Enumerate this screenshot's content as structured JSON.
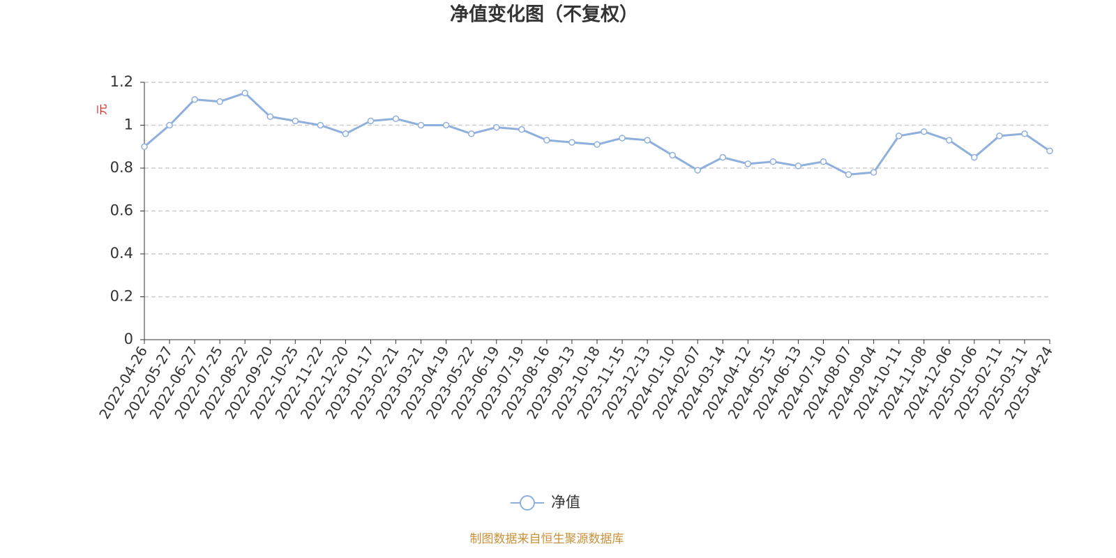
{
  "chart_data": {
    "type": "line",
    "title": "净值变化图（不复权）",
    "y_axis_label": "元",
    "source": "制图数据来自恒生聚源数据库",
    "categories": [
      "2022-04-26",
      "2022-05-27",
      "2022-06-27",
      "2022-07-25",
      "2022-08-22",
      "2022-09-20",
      "2022-10-25",
      "2022-11-22",
      "2022-12-20",
      "2023-01-17",
      "2023-02-21",
      "2023-03-21",
      "2023-04-19",
      "2023-05-22",
      "2023-06-19",
      "2023-07-19",
      "2023-08-16",
      "2023-09-13",
      "2023-10-18",
      "2023-11-15",
      "2023-12-13",
      "2024-01-10",
      "2024-02-07",
      "2024-03-14",
      "2024-04-12",
      "2024-05-15",
      "2024-06-13",
      "2024-07-10",
      "2024-08-07",
      "2024-09-04",
      "2024-10-11",
      "2024-11-08",
      "2024-12-06",
      "2025-01-06",
      "2025-02-11",
      "2025-03-11",
      "2025-04-24"
    ],
    "series": [
      {
        "name": "净值",
        "color": "#8fb0dc",
        "values": [
          0.9,
          1.0,
          1.12,
          1.11,
          1.15,
          1.04,
          1.02,
          1.0,
          0.96,
          1.02,
          1.03,
          1.0,
          1.0,
          0.96,
          0.99,
          0.98,
          0.93,
          0.92,
          0.91,
          0.94,
          0.93,
          0.86,
          0.79,
          0.85,
          0.82,
          0.83,
          0.81,
          0.83,
          0.77,
          0.78,
          0.95,
          0.97,
          0.93,
          0.85,
          0.95,
          0.96,
          0.88
        ]
      }
    ],
    "ylim": [
      0,
      1.2
    ],
    "yticks": [
      0,
      {
        "value": 0.2,
        "label": "0.2"
      },
      {
        "value": 0.4,
        "label": "0.4"
      },
      {
        "value": 0.6,
        "label": "0.6"
      },
      {
        "value": 0.8,
        "label": "0.8"
      },
      1,
      {
        "value": 1.2,
        "label": "1.2"
      }
    ],
    "grid": true
  }
}
